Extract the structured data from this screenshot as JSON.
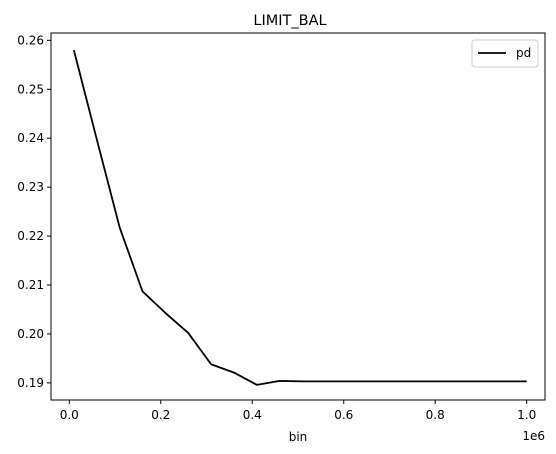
{
  "chart_data": {
    "type": "line",
    "title": "LIMIT_BAL",
    "xlabel": "bin",
    "ylabel": "",
    "x_offset_text": "1e6",
    "xlim": [
      -0.04,
      1.04
    ],
    "ylim": [
      0.1865,
      0.2615
    ],
    "x_ticks": [
      0.0,
      0.2,
      0.4,
      0.6,
      0.8,
      1.0
    ],
    "x_tick_labels": [
      "0.0",
      "0.2",
      "0.4",
      "0.6",
      "0.8",
      "1.0"
    ],
    "y_ticks": [
      0.19,
      0.2,
      0.21,
      0.22,
      0.23,
      0.24,
      0.25,
      0.26
    ],
    "y_tick_labels": [
      "0.19",
      "0.20",
      "0.21",
      "0.22",
      "0.23",
      "0.24",
      "0.25",
      "0.26"
    ],
    "grid": false,
    "legend_position": "top-right",
    "series": [
      {
        "name": "pd",
        "color": "#000000",
        "x": [
          0.01,
          0.06,
          0.11,
          0.16,
          0.21,
          0.26,
          0.31,
          0.36,
          0.41,
          0.46,
          0.51,
          0.56,
          0.61,
          0.66,
          0.71,
          0.76,
          0.81,
          0.86,
          0.91,
          0.96,
          1.0
        ],
        "y": [
          0.258,
          0.2398,
          0.2218,
          0.2087,
          0.2043,
          0.2002,
          0.1938,
          0.1921,
          0.1896,
          0.1904,
          0.1903,
          0.1903,
          0.1903,
          0.1903,
          0.1903,
          0.1903,
          0.1903,
          0.1903,
          0.1903,
          0.1903,
          0.1903
        ]
      }
    ]
  }
}
